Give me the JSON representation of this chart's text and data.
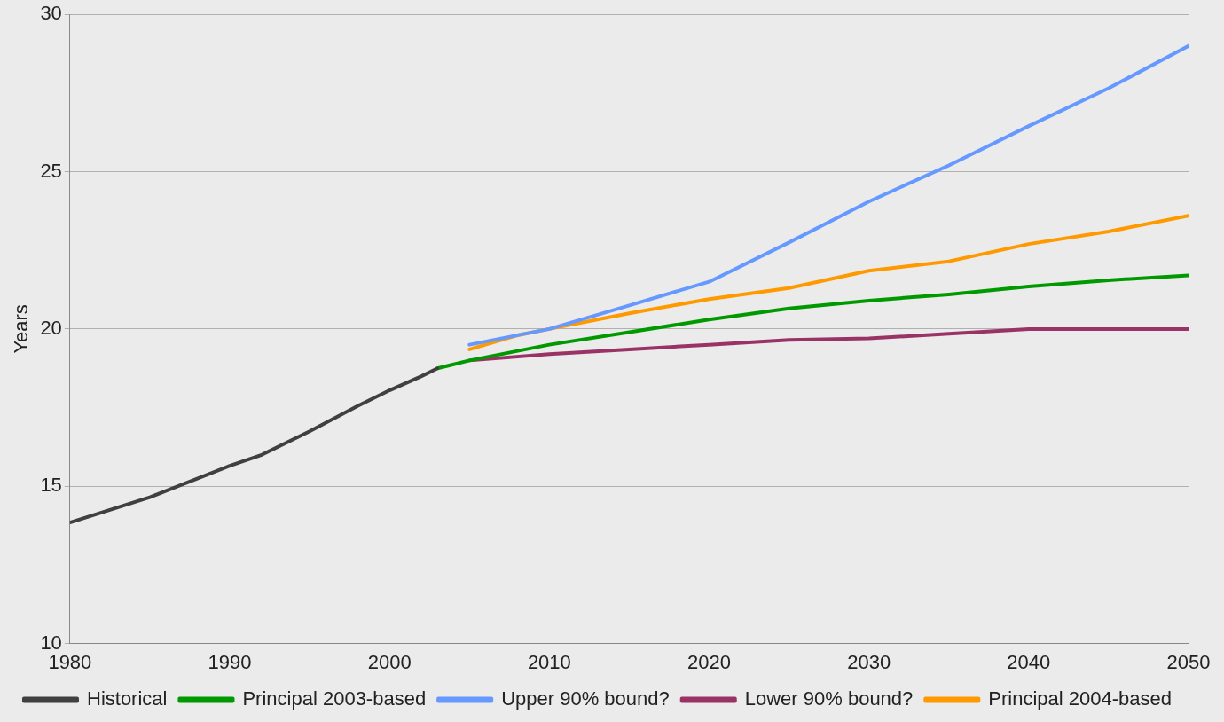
{
  "chart_data": {
    "type": "line",
    "ylabel": "Years",
    "xlim": [
      1980,
      2050
    ],
    "xticks": [
      1980,
      1990,
      2000,
      2010,
      2020,
      2030,
      2040,
      2050
    ],
    "ylim": [
      10,
      30
    ],
    "yticks": [
      10,
      15,
      20,
      25,
      30
    ],
    "grid": "y",
    "legend": "bottom",
    "marker": "none",
    "line_style": "solid",
    "series": [
      {
        "name": "Historical",
        "color": "#404040",
        "x": [
          1980,
          1985,
          1990,
          1992,
          1995,
          1998,
          2000,
          2002,
          2003
        ],
        "values": [
          13.85,
          14.65,
          15.65,
          16.0,
          16.75,
          17.55,
          18.05,
          18.5,
          18.75
        ]
      },
      {
        "name": "Principal 2003-based",
        "color": "#009900",
        "x": [
          2003,
          2005,
          2010,
          2015,
          2020,
          2025,
          2030,
          2035,
          2040,
          2045,
          2050
        ],
        "values": [
          18.75,
          19.0,
          19.5,
          19.9,
          20.3,
          20.65,
          20.9,
          21.1,
          21.35,
          21.55,
          21.7
        ]
      },
      {
        "name": "Upper 90% bound?",
        "color": "#6699ff",
        "x": [
          2005,
          2010,
          2015,
          2020,
          2025,
          2030,
          2035,
          2040,
          2045,
          2050
        ],
        "values": [
          19.5,
          20.0,
          20.75,
          21.5,
          22.75,
          24.05,
          25.2,
          26.45,
          27.65,
          29.0
        ]
      },
      {
        "name": "Lower 90% bound?",
        "color": "#993366",
        "x": [
          2005,
          2010,
          2015,
          2020,
          2025,
          2030,
          2035,
          2040,
          2045,
          2050
        ],
        "values": [
          19.0,
          19.2,
          19.35,
          19.5,
          19.65,
          19.7,
          19.85,
          20.0,
          20.0,
          20.0
        ]
      },
      {
        "name": "Principal 2004-based",
        "color": "#ff9900",
        "x": [
          2005,
          2008,
          2010,
          2015,
          2020,
          2025,
          2030,
          2035,
          2040,
          2045,
          2050
        ],
        "values": [
          19.35,
          19.8,
          20.0,
          20.5,
          20.95,
          21.3,
          21.85,
          22.15,
          22.7,
          23.1,
          23.6
        ]
      }
    ]
  }
}
